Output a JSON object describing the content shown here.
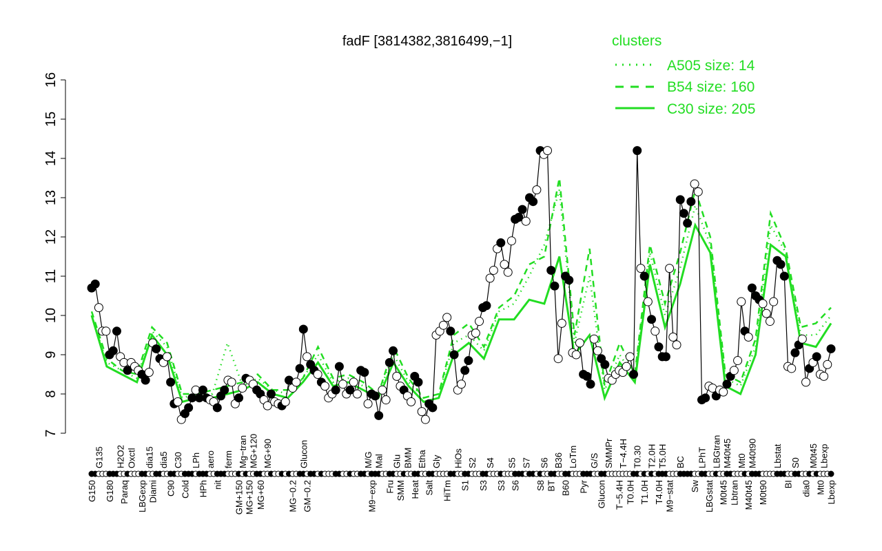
{
  "chart_data": {
    "type": "line",
    "title": "fadF [3814382,3816499,−1]",
    "ylim": [
      7,
      16
    ],
    "yticks": [
      7,
      8,
      9,
      10,
      11,
      12,
      13,
      14,
      15,
      16
    ],
    "grid": false,
    "legend": {
      "title": "clusters",
      "placement": "top-right",
      "color": "#22dd22",
      "entries": [
        {
          "label": "A505 size: 14",
          "style": "dotted"
        },
        {
          "label": "B54 size: 160",
          "style": "dashed"
        },
        {
          "label": "C30 size: 205",
          "style": "solid"
        }
      ]
    },
    "points": [
      [
        "G150",
        10.7,
        1
      ],
      [
        "",
        10.8,
        1
      ],
      [
        "G135",
        10.2,
        0
      ],
      [
        "",
        9.6,
        0
      ],
      [
        "",
        9.6,
        0
      ],
      [
        "G180",
        9.0,
        1
      ],
      [
        "",
        9.1,
        1
      ],
      [
        "",
        9.6,
        1
      ],
      [
        "H2O2",
        8.95,
        0
      ],
      [
        "Paraq",
        8.8,
        0
      ],
      [
        "",
        8.6,
        1
      ],
      [
        "Oxctl",
        8.8,
        0
      ],
      [
        "",
        8.7,
        0
      ],
      [
        "",
        8.6,
        0
      ],
      [
        "LBGexp",
        8.5,
        1
      ],
      [
        "",
        8.35,
        1
      ],
      [
        "dia15",
        8.55,
        0
      ],
      [
        "Diami",
        9.3,
        0
      ],
      [
        "",
        9.15,
        1
      ],
      [
        "",
        8.9,
        1
      ],
      [
        "dia5",
        8.8,
        0
      ],
      [
        "",
        8.95,
        0
      ],
      [
        "C90",
        8.3,
        1
      ],
      [
        "",
        7.75,
        1
      ],
      [
        "C30",
        7.8,
        0
      ],
      [
        "",
        7.35,
        0
      ],
      [
        "Cold",
        7.5,
        1
      ],
      [
        "",
        7.65,
        1
      ],
      [
        "",
        7.9,
        1
      ],
      [
        "LPh",
        8.1,
        0
      ],
      [
        "",
        7.9,
        1
      ],
      [
        "HPh",
        8.1,
        1
      ],
      [
        "",
        7.9,
        1
      ],
      [
        "aero",
        7.85,
        0
      ],
      [
        "",
        7.8,
        0
      ],
      [
        "nit",
        7.65,
        1
      ],
      [
        "",
        7.95,
        1
      ],
      [
        "",
        8.1,
        1
      ],
      [
        "ferm",
        8.35,
        0
      ],
      [
        "",
        8.3,
        0
      ],
      [
        "",
        7.75,
        0
      ],
      [
        "GM+150",
        7.9,
        1
      ],
      [
        "Mg−tran",
        8.15,
        0
      ],
      [
        "MG+150",
        8.4,
        1
      ],
      [
        "",
        8.35,
        0
      ],
      [
        "MG+120",
        8.25,
        0
      ],
      [
        "",
        8.1,
        1
      ],
      [
        "MG+60",
        8.0,
        1
      ],
      [
        "",
        7.85,
        0
      ],
      [
        "MG+90",
        7.7,
        0
      ],
      [
        "",
        8.0,
        1
      ],
      [
        "",
        7.8,
        0
      ],
      [
        "",
        7.75,
        0
      ],
      [
        "",
        7.7,
        1
      ],
      [
        "",
        7.8,
        0
      ],
      [
        "",
        8.35,
        1
      ],
      [
        "MG−0.2",
        8.15,
        0
      ],
      [
        "",
        8.3,
        0
      ],
      [
        "",
        8.65,
        1
      ],
      [
        "Glucon",
        9.65,
        1
      ],
      [
        "GM−0.2",
        8.95,
        0
      ],
      [
        "",
        8.75,
        1
      ],
      [
        "",
        8.6,
        1
      ],
      [
        "",
        8.5,
        0
      ],
      [
        "",
        8.3,
        1
      ],
      [
        "",
        8.2,
        0
      ],
      [
        "",
        7.9,
        0
      ],
      [
        "",
        8.0,
        0
      ],
      [
        "",
        8.1,
        1
      ],
      [
        "",
        8.7,
        1
      ],
      [
        "",
        8.25,
        0
      ],
      [
        "",
        8.0,
        0
      ],
      [
        "",
        8.1,
        1
      ],
      [
        "",
        8.3,
        0
      ],
      [
        "",
        8.0,
        0
      ],
      [
        "",
        8.6,
        1
      ],
      [
        "",
        8.55,
        1
      ],
      [
        "M/G",
        7.75,
        0
      ],
      [
        "M9−exp",
        8.0,
        1
      ],
      [
        "",
        7.95,
        1
      ],
      [
        "Mal",
        7.45,
        1
      ],
      [
        "",
        8.1,
        0
      ],
      [
        "",
        7.85,
        0
      ],
      [
        "Fru",
        8.8,
        1
      ],
      [
        "",
        9.1,
        1
      ],
      [
        "Glu",
        8.45,
        0
      ],
      [
        "SMM",
        8.2,
        0
      ],
      [
        "",
        8.1,
        1
      ],
      [
        "BMM",
        7.95,
        0
      ],
      [
        "",
        7.8,
        0
      ],
      [
        "Heat",
        8.45,
        1
      ],
      [
        "",
        8.3,
        1
      ],
      [
        "Etha",
        7.55,
        0
      ],
      [
        "",
        7.35,
        0
      ],
      [
        "Salt",
        7.75,
        1
      ],
      [
        "",
        7.65,
        1
      ],
      [
        "Gly",
        9.5,
        0
      ],
      [
        "",
        9.6,
        0
      ],
      [
        "",
        9.75,
        0
      ],
      [
        "HiTm",
        9.95,
        0
      ],
      [
        "",
        9.6,
        1
      ],
      [
        "",
        9.0,
        1
      ],
      [
        "HiOs",
        8.1,
        0
      ],
      [
        "",
        8.25,
        0
      ],
      [
        "S1",
        8.6,
        1
      ],
      [
        "",
        8.85,
        1
      ],
      [
        "S2",
        9.5,
        0
      ],
      [
        "",
        9.55,
        0
      ],
      [
        "",
        9.85,
        0
      ],
      [
        "S3",
        10.2,
        1
      ],
      [
        "",
        10.25,
        1
      ],
      [
        "S4",
        10.95,
        0
      ],
      [
        "",
        11.15,
        0
      ],
      [
        "",
        11.7,
        0
      ],
      [
        "S3",
        11.85,
        1
      ],
      [
        "",
        11.3,
        0
      ],
      [
        "",
        11.1,
        0
      ],
      [
        "S5",
        11.9,
        0
      ],
      [
        "S6",
        12.45,
        1
      ],
      [
        "",
        12.5,
        1
      ],
      [
        "",
        12.7,
        1
      ],
      [
        "S7",
        12.4,
        0
      ],
      [
        "",
        13.0,
        1
      ],
      [
        "",
        12.9,
        1
      ],
      [
        "",
        13.2,
        0
      ],
      [
        "S8",
        14.2,
        1
      ],
      [
        "S6",
        14.1,
        0
      ],
      [
        "",
        14.2,
        0
      ],
      [
        "BT",
        11.15,
        1
      ],
      [
        "",
        10.75,
        1
      ],
      [
        "B36",
        8.9,
        0
      ],
      [
        "",
        9.8,
        0
      ],
      [
        "B60",
        11.0,
        1
      ],
      [
        "",
        10.9,
        1
      ],
      [
        "LoTm",
        9.05,
        0
      ],
      [
        "",
        9.0,
        0
      ],
      [
        "",
        9.3,
        0
      ],
      [
        "Pyr",
        8.5,
        1
      ],
      [
        "",
        8.45,
        1
      ],
      [
        "",
        8.25,
        1
      ],
      [
        "G/S",
        9.4,
        0
      ],
      [
        "",
        9.1,
        0
      ],
      [
        "Glucon",
        8.9,
        1
      ],
      [
        "",
        8.75,
        1
      ],
      [
        "SMMPr",
        8.4,
        0
      ],
      [
        "",
        8.35,
        0
      ],
      [
        "",
        8.5,
        0
      ],
      [
        "T−5.4H",
        8.6,
        0
      ],
      [
        "T−4.4H",
        8.55,
        0
      ],
      [
        "",
        8.7,
        0
      ],
      [
        "T0.0H",
        8.95,
        0
      ],
      [
        "",
        8.5,
        1
      ],
      [
        "T0.30",
        14.2,
        1
      ],
      [
        "",
        11.2,
        0
      ],
      [
        "T1.0H",
        11.0,
        1
      ],
      [
        "",
        10.35,
        0
      ],
      [
        "T2.0H",
        9.9,
        1
      ],
      [
        "",
        9.6,
        0
      ],
      [
        "T4.0H",
        9.2,
        1
      ],
      [
        "T5.0H",
        8.95,
        1
      ],
      [
        "",
        8.95,
        1
      ],
      [
        "M9−stat",
        11.2,
        0
      ],
      [
        "",
        9.45,
        0
      ],
      [
        "",
        9.25,
        0
      ],
      [
        "BC",
        12.95,
        1
      ],
      [
        "",
        12.6,
        1
      ],
      [
        "",
        12.35,
        1
      ],
      [
        "",
        12.9,
        1
      ],
      [
        "Sw",
        13.35,
        0
      ],
      [
        "",
        13.15,
        0
      ],
      [
        "LPhT",
        7.85,
        1
      ],
      [
        "",
        7.9,
        1
      ],
      [
        "LBGstat",
        8.2,
        0
      ],
      [
        "",
        8.15,
        0
      ],
      [
        "LBGtran",
        7.95,
        1
      ],
      [
        "",
        8.1,
        0
      ],
      [
        "M0t45",
        8.05,
        0
      ],
      [
        "M40t45",
        8.25,
        1
      ],
      [
        "",
        8.45,
        1
      ],
      [
        "Lbtran",
        8.6,
        0
      ],
      [
        "",
        8.85,
        0
      ],
      [
        "Mt0",
        10.35,
        0
      ],
      [
        "",
        9.6,
        1
      ],
      [
        "M40t45",
        9.45,
        0
      ],
      [
        "M40t90",
        10.7,
        1
      ],
      [
        "",
        10.5,
        1
      ],
      [
        "",
        10.4,
        1
      ],
      [
        "M0t90",
        10.3,
        0
      ],
      [
        "",
        10.05,
        0
      ],
      [
        "",
        9.85,
        0
      ],
      [
        "",
        10.35,
        0
      ],
      [
        "Lbstat",
        11.4,
        1
      ],
      [
        "",
        11.3,
        1
      ],
      [
        "",
        11.0,
        1
      ],
      [
        "BI",
        8.7,
        0
      ],
      [
        "",
        8.65,
        0
      ],
      [
        "S0",
        9.05,
        1
      ],
      [
        "",
        9.25,
        1
      ],
      [
        "",
        9.4,
        0
      ],
      [
        "dia0",
        8.3,
        0
      ],
      [
        "",
        8.65,
        1
      ],
      [
        "M0t45",
        8.8,
        0
      ],
      [
        "",
        8.95,
        1
      ],
      [
        "Mt0",
        8.5,
        0
      ],
      [
        "Lbexp",
        8.45,
        0
      ],
      [
        "",
        8.75,
        0
      ],
      [
        "Lbexp",
        9.15,
        1
      ]
    ],
    "cluster_lines": {
      "C30": [
        10.0,
        8.7,
        8.5,
        8.3,
        9.5,
        9.0,
        7.8,
        7.9,
        7.9,
        8.0,
        8.1,
        8.3,
        8.0,
        7.9,
        8.3,
        8.8,
        8.2,
        8.3,
        8.1,
        7.9,
        8.8,
        8.2,
        7.8,
        7.9,
        9.0,
        9.3,
        8.9,
        9.9,
        9.9,
        10.4,
        10.3,
        11.5,
        9.0,
        9.5,
        7.9,
        8.8,
        8.3,
        11.3,
        9.7,
        10.8,
        12.3,
        11.6,
        8.2,
        8.0,
        9.0,
        11.8,
        11.5,
        9.3,
        9.2,
        9.8
      ],
      "B54": [
        10.1,
        8.9,
        8.6,
        8.5,
        9.7,
        9.3,
        8.0,
        8.0,
        8.1,
        8.2,
        8.3,
        8.5,
        8.1,
        8.1,
        8.4,
        9.2,
        8.4,
        8.5,
        8.3,
        8.0,
        9.2,
        8.4,
        7.9,
        8.0,
        9.5,
        9.8,
        9.2,
        10.2,
        10.5,
        11.3,
        11.5,
        13.5,
        9.5,
        11.7,
        8.2,
        9.3,
        8.5,
        11.8,
        10.3,
        11.6,
        13.2,
        12.0,
        8.5,
        8.3,
        9.4,
        12.6,
        11.7,
        9.7,
        9.8,
        10.2
      ],
      "A505": [
        10.0,
        8.8,
        8.6,
        8.4,
        9.6,
        9.2,
        7.9,
        8.0,
        8.0,
        9.3,
        8.2,
        8.4,
        8.1,
        8.0,
        8.4,
        9.0,
        8.3,
        8.4,
        8.2,
        8.0,
        9.0,
        8.3,
        7.9,
        8.0,
        9.3,
        9.5,
        9.1,
        10.1,
        10.3,
        11.0,
        11.8,
        13.2,
        9.3,
        11.0,
        8.1,
        9.0,
        8.4,
        11.6,
        10.0,
        11.2,
        12.8,
        11.8,
        8.4,
        8.2,
        9.2,
        12.3,
        11.6,
        9.5,
        9.5,
        10.0
      ]
    }
  }
}
